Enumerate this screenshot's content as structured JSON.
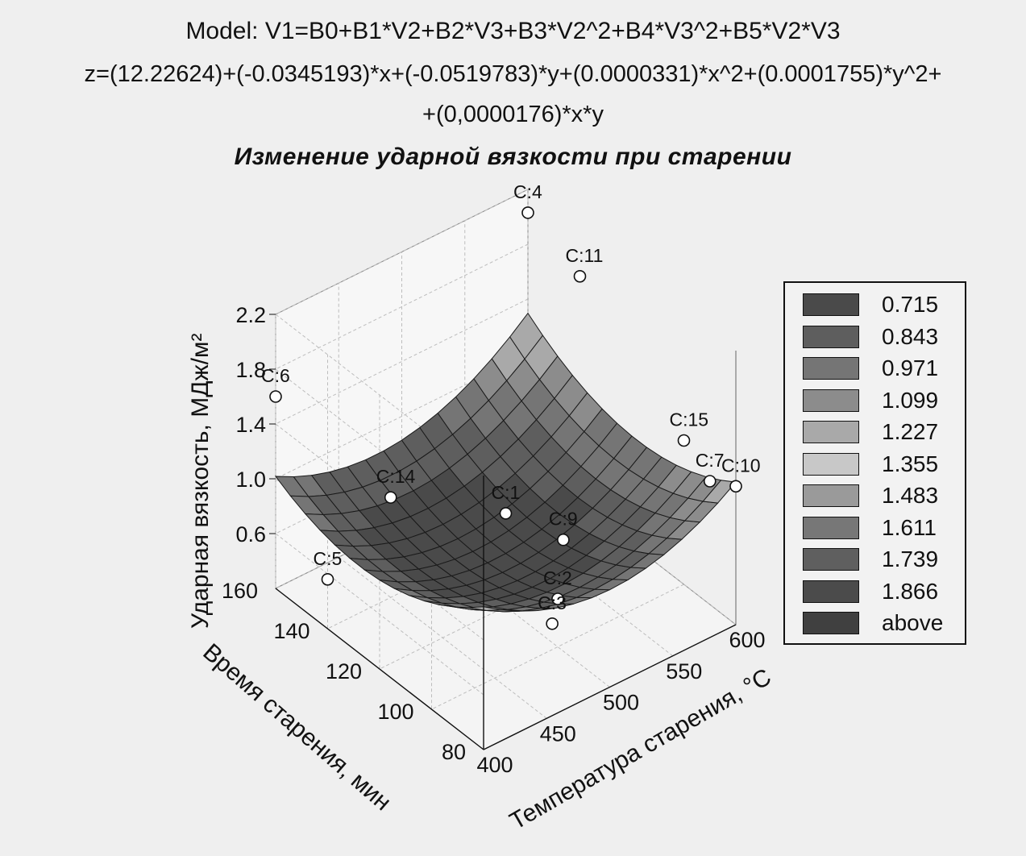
{
  "header": {
    "model": "Model: V1=B0+B1*V2+B2*V3+B3*V2^2+B4*V3^2+B5*V2*V3",
    "equation_line1": "z=(12.22624)+(-0.0345193)*x+(-0.0519783)*y+(0.0000331)*x^2+(0.0001755)*y^2+",
    "equation_line2": "+(0,0000176)*x*y",
    "title": "Изменение ударной вязкости при старении"
  },
  "chart_data": {
    "type": "surface3d",
    "title": "Изменение ударной вязкости при старении",
    "model": {
      "intercept": 12.22624,
      "b_x": -0.0345193,
      "b_y": -0.0519783,
      "b_xx": 3.31e-05,
      "b_yy": 0.0001755,
      "b_xy": 1.76e-05
    },
    "x_axis": {
      "label": "Температура старения, °C",
      "ticks": [
        "400",
        "450",
        "500",
        "550",
        "600"
      ],
      "range": [
        400,
        600
      ]
    },
    "y_axis": {
      "label": "Время старения, мин",
      "ticks": [
        "80",
        "100",
        "120",
        "140",
        "160"
      ],
      "range": [
        80,
        160
      ]
    },
    "z_axis": {
      "label": "Ударная вязкость, МДж/м²",
      "ticks": [
        "0.6",
        "1.0",
        "1.4",
        "1.8",
        "2.2"
      ],
      "range": [
        0.2,
        2.2
      ]
    },
    "legend": {
      "position": "right",
      "entries": [
        {
          "label": "0.715",
          "color": "#4a4a4a"
        },
        {
          "label": "0.843",
          "color": "#5e5e5e"
        },
        {
          "label": "0.971",
          "color": "#757575"
        },
        {
          "label": "1.099",
          "color": "#8c8c8c"
        },
        {
          "label": "1.227",
          "color": "#a9a9a9"
        },
        {
          "label": "1.355",
          "color": "#c8c8c8"
        },
        {
          "label": "1.483",
          "color": "#9a9a9a"
        },
        {
          "label": "1.611",
          "color": "#777777"
        },
        {
          "label": "1.739",
          "color": "#5f5f5f"
        },
        {
          "label": "1.866",
          "color": "#4b4b4b"
        },
        {
          "label": "above",
          "color": "#404040"
        }
      ]
    },
    "points": [
      {
        "label": "C:4",
        "x": 600,
        "y": 160,
        "z": 2.03
      },
      {
        "label": "C:11",
        "x": 600,
        "y": 140,
        "z": 1.86
      },
      {
        "label": "C:6",
        "x": 400,
        "y": 160,
        "z": 1.6
      },
      {
        "label": "C:15",
        "x": 600,
        "y": 100,
        "z": 1.25
      },
      {
        "label": "C:7",
        "x": 600,
        "y": 90,
        "z": 1.1
      },
      {
        "label": "C:10",
        "x": 600,
        "y": 80,
        "z": 1.21
      },
      {
        "label": "C:1",
        "x": 500,
        "y": 120,
        "z": 0.88
      },
      {
        "label": "C:14",
        "x": 450,
        "y": 140,
        "z": 0.93
      },
      {
        "label": "C:5",
        "x": 400,
        "y": 140,
        "z": 0.56
      },
      {
        "label": "C:9",
        "x": 525,
        "y": 110,
        "z": 0.72
      },
      {
        "label": "C:2",
        "x": 500,
        "y": 100,
        "z": 0.55
      },
      {
        "label": "C:3",
        "x": 475,
        "y": 90,
        "z": 0.63
      }
    ]
  }
}
